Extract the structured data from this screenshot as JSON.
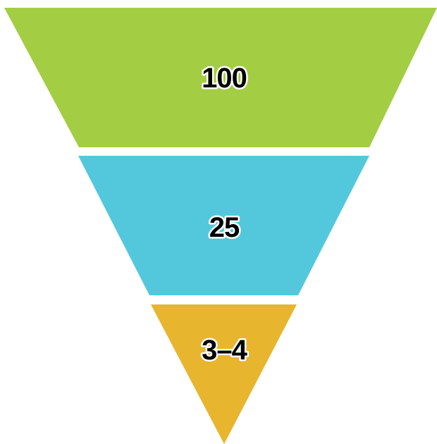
{
  "funnel": {
    "stages": [
      {
        "label": "100",
        "color": "#A3CD43"
      },
      {
        "label": "25",
        "color": "#53C8DC"
      },
      {
        "label": "3–4",
        "color": "#E8B52E"
      }
    ]
  }
}
